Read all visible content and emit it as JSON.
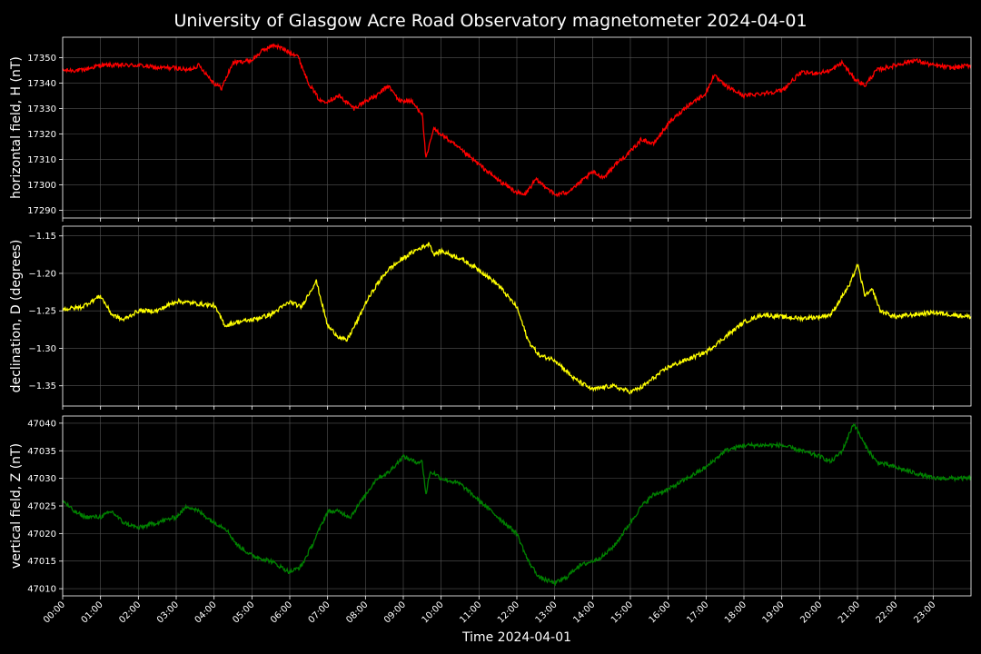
{
  "chart_data": {
    "title": "University of Glasgow Acre Road Observatory magnetometer 2024-04-01",
    "xlabel": "Time 2024-04-01",
    "x_ticks": [
      "00:00",
      "01:00",
      "02:00",
      "03:00",
      "04:00",
      "05:00",
      "06:00",
      "07:00",
      "08:00",
      "09:00",
      "10:00",
      "11:00",
      "12:00",
      "13:00",
      "14:00",
      "15:00",
      "16:00",
      "17:00",
      "18:00",
      "19:00",
      "20:00",
      "21:00",
      "22:00",
      "23:00"
    ],
    "x_range_hours": [
      0,
      24
    ],
    "grid": true,
    "background": "#000000",
    "grid_color": "#555555",
    "panels": [
      {
        "type": "line",
        "ylabel": "horizontal field, H (nT)",
        "color": "#ff0000",
        "ylim": [
          17287,
          17358
        ],
        "yticks": [
          17290,
          17300,
          17310,
          17320,
          17330,
          17340,
          17350
        ],
        "x": [
          0,
          0.5,
          1,
          1.5,
          2,
          2.5,
          3,
          3.3,
          3.6,
          4,
          4.2,
          4.5,
          5,
          5.3,
          5.6,
          6,
          6.2,
          6.5,
          6.8,
          7,
          7.3,
          7.7,
          8,
          8.3,
          8.6,
          8.9,
          9.2,
          9.5,
          9.6,
          9.8,
          10,
          10.5,
          11,
          11.5,
          12,
          12.2,
          12.5,
          12.8,
          13,
          13.3,
          13.6,
          14,
          14.3,
          14.6,
          15,
          15.3,
          15.6,
          16,
          16.5,
          17,
          17.2,
          17.5,
          18,
          18.5,
          19,
          19.5,
          20,
          20.3,
          20.6,
          20.9,
          21.2,
          21.5,
          22,
          22.5,
          23,
          23.5,
          24
        ],
        "values": [
          17345,
          17345,
          17347,
          17347,
          17347,
          17346,
          17346,
          17345,
          17347,
          17340,
          17338,
          17348,
          17349,
          17353,
          17355,
          17352,
          17351,
          17340,
          17333,
          17333,
          17335,
          17330,
          17333,
          17335,
          17339,
          17333,
          17333,
          17328,
          17310,
          17322,
          17320,
          17314,
          17308,
          17302,
          17297,
          17296,
          17302,
          17299,
          17296,
          17297,
          17300,
          17305,
          17303,
          17308,
          17313,
          17318,
          17316,
          17324,
          17331,
          17336,
          17343,
          17339,
          17335,
          17336,
          17337,
          17344,
          17344,
          17345,
          17348,
          17342,
          17339,
          17345,
          17347,
          17349,
          17347,
          17346,
          17347
        ]
      },
      {
        "type": "line",
        "ylabel": "declination, D (degrees)",
        "color": "#ffff00",
        "ylim": [
          -1.377,
          -1.137
        ],
        "yticks": [
          -1.35,
          -1.3,
          -1.25,
          -1.2,
          -1.15
        ],
        "ytick_labels": [
          "−1.35",
          "−1.30",
          "−1.25",
          "−1.20",
          "−1.15"
        ],
        "x": [
          0,
          0.5,
          1,
          1.3,
          1.6,
          2,
          2.5,
          3,
          3.5,
          4,
          4.3,
          4.6,
          5,
          5.5,
          6,
          6.3,
          6.7,
          7,
          7.3,
          7.5,
          7.8,
          8,
          8.3,
          8.6,
          9,
          9.3,
          9.5,
          9.7,
          9.8,
          10,
          10.5,
          11,
          11.5,
          12,
          12.3,
          12.6,
          13,
          13.5,
          14,
          14.5,
          15,
          15.3,
          15.6,
          16,
          16.5,
          17,
          17.5,
          18,
          18.5,
          19,
          19.5,
          20,
          20.3,
          20.6,
          20.8,
          21,
          21.2,
          21.4,
          21.6,
          22,
          22.5,
          23,
          23.5,
          24
        ],
        "values": [
          -1.248,
          -1.245,
          -1.23,
          -1.255,
          -1.262,
          -1.25,
          -1.25,
          -1.237,
          -1.24,
          -1.243,
          -1.27,
          -1.265,
          -1.262,
          -1.255,
          -1.238,
          -1.245,
          -1.21,
          -1.27,
          -1.285,
          -1.29,
          -1.262,
          -1.24,
          -1.215,
          -1.195,
          -1.18,
          -1.17,
          -1.165,
          -1.16,
          -1.175,
          -1.17,
          -1.18,
          -1.195,
          -1.215,
          -1.245,
          -1.29,
          -1.31,
          -1.315,
          -1.34,
          -1.355,
          -1.35,
          -1.358,
          -1.352,
          -1.34,
          -1.325,
          -1.315,
          -1.305,
          -1.285,
          -1.265,
          -1.255,
          -1.258,
          -1.26,
          -1.258,
          -1.255,
          -1.23,
          -1.215,
          -1.188,
          -1.23,
          -1.222,
          -1.25,
          -1.258,
          -1.255,
          -1.252,
          -1.255,
          -1.258
        ]
      },
      {
        "type": "line",
        "ylabel": "vertical field, Z (nT)",
        "color": "#008000",
        "ylim": [
          47008.7,
          47041.3
        ],
        "yticks": [
          47010,
          47015,
          47020,
          47025,
          47030,
          47035,
          47040
        ],
        "x": [
          0,
          0.3,
          0.6,
          1,
          1.3,
          1.6,
          2,
          2.5,
          3,
          3.3,
          3.6,
          4,
          4.3,
          4.6,
          5,
          5.5,
          6,
          6.3,
          6.6,
          7,
          7.3,
          7.6,
          8,
          8.3,
          8.6,
          9,
          9.3,
          9.5,
          9.6,
          9.7,
          9.8,
          10,
          10.5,
          11,
          11.5,
          12,
          12.3,
          12.6,
          13,
          13.3,
          13.6,
          14,
          14.3,
          14.6,
          15,
          15.3,
          15.6,
          16,
          16.5,
          17,
          17.5,
          18,
          18.5,
          19,
          19.5,
          20,
          20.3,
          20.6,
          20.9,
          21.2,
          21.5,
          22,
          22.5,
          23,
          23.5,
          24
        ],
        "values": [
          47026,
          47024,
          47023,
          47023,
          47024,
          47022,
          47021,
          47022,
          47023,
          47025,
          47024,
          47022,
          47021,
          47018,
          47016,
          47015,
          47013,
          47014,
          47018,
          47024,
          47024,
          47023,
          47027,
          47030,
          47031,
          47034,
          47033,
          47033,
          47027,
          47031,
          47031,
          47030,
          47029,
          47026,
          47023,
          47020,
          47015,
          47012,
          47011,
          47012,
          47014,
          47015,
          47016,
          47018,
          47022,
          47025,
          47027,
          47028,
          47030,
          47032,
          47035,
          47036,
          47036,
          47036,
          47035,
          47034,
          47033,
          47035,
          47040,
          47036,
          47033,
          47032,
          47031,
          47030,
          47030,
          47030
        ]
      }
    ]
  }
}
